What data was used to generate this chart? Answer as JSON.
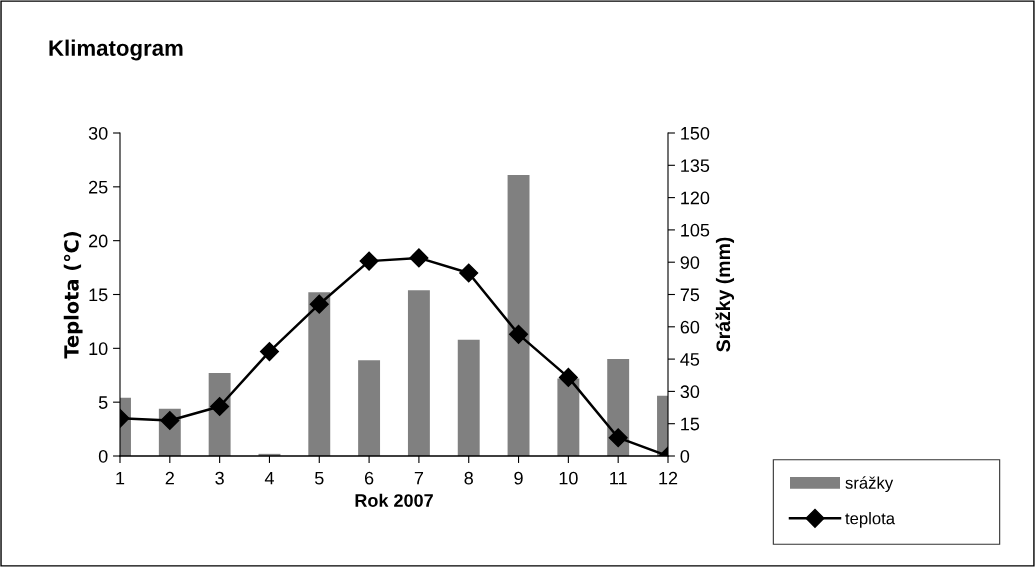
{
  "chart_data": {
    "type": "bar",
    "title": "Klimatogram",
    "xlabel": "Rok 2007",
    "ylabel": "Teplota (℃)",
    "y2label": "Srážky (mm)",
    "categories": [
      "1",
      "2",
      "3",
      "4",
      "5",
      "6",
      "7",
      "8",
      "9",
      "10",
      "11",
      "12"
    ],
    "series": [
      {
        "name": "srážky",
        "axis": "y2",
        "color": "#808080",
        "values": [
          27,
          22,
          38.5,
          1,
          76,
          44.5,
          77,
          54,
          130.5,
          36,
          45,
          28
        ]
      },
      {
        "name": "teplota",
        "type": "line",
        "color": "#000000",
        "marker": "diamond",
        "values": [
          3.5,
          3.3,
          4.6,
          9.7,
          14.1,
          18.1,
          18.4,
          17.0,
          11.3,
          7.3,
          1.7,
          0
        ]
      }
    ],
    "ylim": [
      0,
      30
    ],
    "yticks": [
      0,
      5,
      10,
      15,
      20,
      25,
      30
    ],
    "y2lim": [
      0,
      150
    ],
    "y2ticks": [
      0,
      15,
      30,
      45,
      60,
      75,
      90,
      105,
      120,
      135,
      150
    ],
    "grid": false,
    "legend": "bottom right"
  }
}
